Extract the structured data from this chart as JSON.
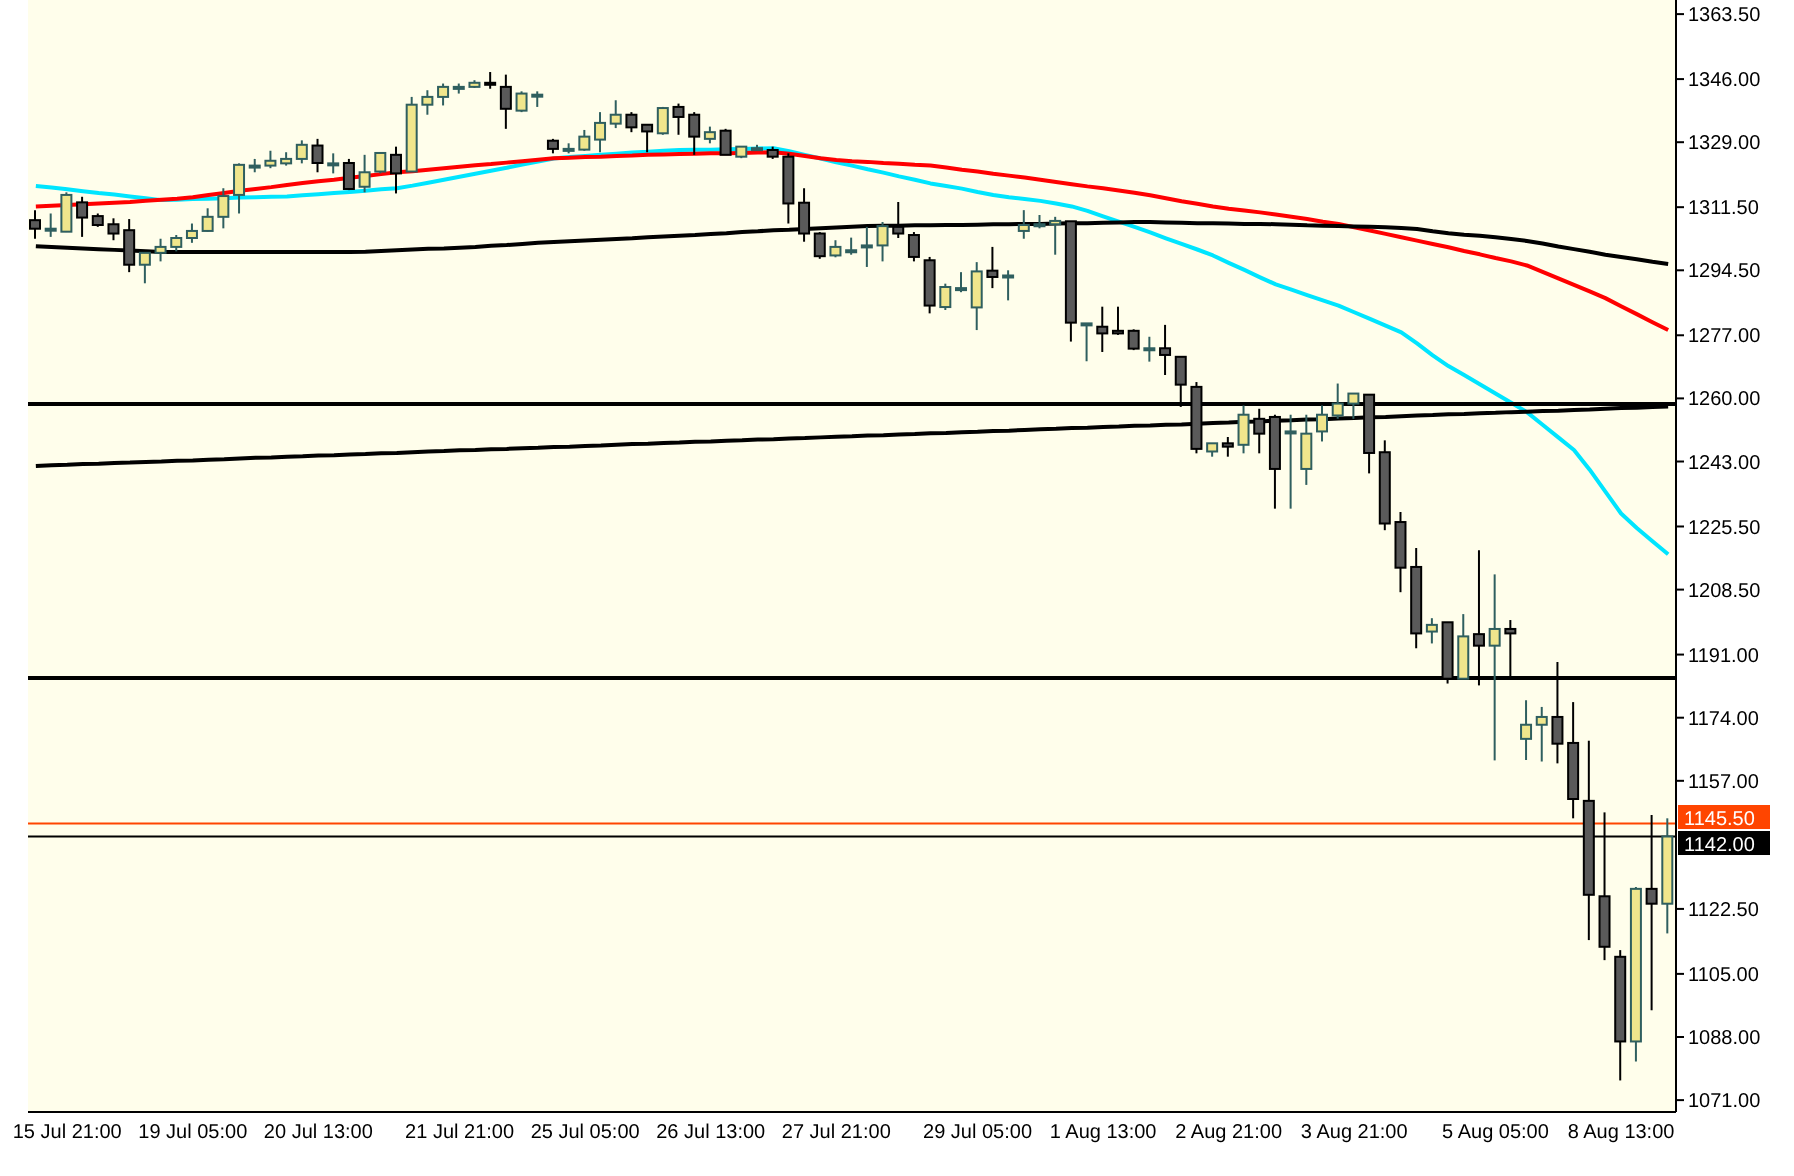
{
  "chart_data": {
    "type": "candlestick",
    "categories": [
      null,
      null,
      "15 Jul 21:00",
      null,
      null,
      null,
      null,
      null,
      null,
      null,
      "19 Jul 05:00",
      null,
      null,
      null,
      null,
      null,
      null,
      null,
      "20 Jul 13:00",
      null,
      null,
      null,
      null,
      null,
      null,
      null,
      null,
      "21 Jul 21:00",
      null,
      null,
      null,
      null,
      null,
      null,
      null,
      "25 Jul 05:00",
      null,
      null,
      null,
      null,
      null,
      null,
      null,
      "26 Jul 13:00",
      null,
      null,
      null,
      null,
      null,
      null,
      null,
      "27 Jul 21:00",
      null,
      null,
      null,
      null,
      null,
      null,
      null,
      null,
      "29 Jul 05:00",
      null,
      null,
      null,
      null,
      null,
      null,
      null,
      "1 Aug 13:00",
      null,
      null,
      null,
      null,
      null,
      null,
      null,
      "2 Aug 21:00",
      null,
      null,
      null,
      null,
      null,
      null,
      null,
      "3 Aug 21:00",
      null,
      null,
      null,
      null,
      null,
      null,
      null,
      null,
      "5 Aug 05:00",
      null,
      null,
      null,
      null,
      null,
      null,
      null,
      "8 Aug 13:00",
      null,
      null,
      null
    ],
    "ohlc": [
      [
        1308.0,
        1310.7,
        1303.0,
        1305.7
      ],
      [
        1305.7,
        1309.8,
        1303.5,
        1305.7
      ],
      [
        1304.9,
        1315.5,
        1304.8,
        1314.8
      ],
      [
        1312.8,
        1314.3,
        1303.5,
        1308.7
      ],
      [
        1309.1,
        1309.8,
        1306.2,
        1306.7
      ],
      [
        1306.9,
        1308.5,
        1302.6,
        1304.4
      ],
      [
        1305.3,
        1308.3,
        1294.0,
        1296.0
      ],
      [
        1296.0,
        1299.2,
        1291.0,
        1299.2
      ],
      [
        1299.2,
        1303.0,
        1296.9,
        1300.8
      ],
      [
        1300.8,
        1304.0,
        1299.6,
        1303.2
      ],
      [
        1303.2,
        1307.1,
        1301.9,
        1305.1
      ],
      [
        1305.1,
        1311.2,
        1304.9,
        1308.9
      ],
      [
        1308.9,
        1316.6,
        1305.8,
        1314.5
      ],
      [
        1314.8,
        1323.3,
        1309.8,
        1322.9
      ],
      [
        1322.7,
        1324.5,
        1320.9,
        1322.7
      ],
      [
        1322.7,
        1326.7,
        1322.0,
        1324.0
      ],
      [
        1323.3,
        1326.3,
        1322.7,
        1324.5
      ],
      [
        1324.5,
        1329.5,
        1323.3,
        1328.3
      ],
      [
        1328.1,
        1329.9,
        1320.9,
        1323.4
      ],
      [
        1323.3,
        1326.0,
        1320.6,
        1323.3
      ],
      [
        1323.4,
        1324.5,
        1316.1,
        1316.4
      ],
      [
        1317.0,
        1325.6,
        1315.5,
        1320.9
      ],
      [
        1321.1,
        1326.1,
        1320.6,
        1326.1
      ],
      [
        1325.6,
        1327.8,
        1315.2,
        1320.6
      ],
      [
        1321.1,
        1341.2,
        1321.1,
        1339.1
      ],
      [
        1339.1,
        1343.0,
        1336.4,
        1341.2
      ],
      [
        1341.2,
        1344.8,
        1338.9,
        1343.9
      ],
      [
        1343.9,
        1344.8,
        1342.1,
        1343.9
      ],
      [
        1343.9,
        1345.7,
        1343.6,
        1345.0
      ],
      [
        1345.0,
        1347.9,
        1343.4,
        1344.8
      ],
      [
        1343.9,
        1347.2,
        1332.6,
        1338.0
      ],
      [
        1337.5,
        1342.7,
        1337.1,
        1342.1
      ],
      [
        1341.8,
        1342.7,
        1338.5,
        1341.8
      ],
      [
        1329.4,
        1329.9,
        1326.0,
        1327.2
      ],
      [
        1327.2,
        1328.7,
        1326.0,
        1327.2
      ],
      [
        1327.0,
        1332.3,
        1326.7,
        1330.5
      ],
      [
        1329.7,
        1337.1,
        1326.3,
        1334.2
      ],
      [
        1334.0,
        1340.3,
        1332.8,
        1336.4
      ],
      [
        1336.4,
        1337.1,
        1331.7,
        1333.0
      ],
      [
        1333.7,
        1333.7,
        1326.3,
        1331.9
      ],
      [
        1331.4,
        1338.5,
        1331.0,
        1338.2
      ],
      [
        1338.5,
        1339.4,
        1331.0,
        1335.8
      ],
      [
        1336.4,
        1337.1,
        1325.6,
        1330.5
      ],
      [
        1329.9,
        1333.2,
        1328.7,
        1331.7
      ],
      [
        1332.1,
        1332.6,
        1325.6,
        1325.6
      ],
      [
        1325.1,
        1327.8,
        1324.7,
        1327.8
      ],
      [
        1327.4,
        1328.3,
        1326.9,
        1327.4
      ],
      [
        1326.9,
        1327.8,
        1324.5,
        1325.1
      ],
      [
        1325.1,
        1326.0,
        1307.1,
        1312.5
      ],
      [
        1312.7,
        1316.6,
        1302.2,
        1304.4
      ],
      [
        1304.4,
        1304.8,
        1297.6,
        1298.3
      ],
      [
        1298.5,
        1302.6,
        1298.0,
        1300.8
      ],
      [
        1299.9,
        1303.3,
        1298.7,
        1299.9
      ],
      [
        1301.2,
        1306.2,
        1295.4,
        1301.2
      ],
      [
        1301.2,
        1307.5,
        1296.9,
        1306.4
      ],
      [
        1306.2,
        1312.9,
        1303.2,
        1304.4
      ],
      [
        1304.0,
        1304.8,
        1296.9,
        1298.1
      ],
      [
        1297.2,
        1298.1,
        1282.9,
        1285.0
      ],
      [
        1284.6,
        1290.9,
        1283.8,
        1290.0
      ],
      [
        1289.7,
        1294.0,
        1288.6,
        1289.7
      ],
      [
        1284.5,
        1296.7,
        1278.4,
        1294.2
      ],
      [
        1294.4,
        1300.8,
        1289.7,
        1292.7
      ],
      [
        1293.1,
        1294.5,
        1286.4,
        1293.1
      ],
      [
        1305.1,
        1310.7,
        1303.0,
        1306.7
      ],
      [
        1306.9,
        1309.4,
        1305.8,
        1306.9
      ],
      [
        1306.9,
        1308.9,
        1298.7,
        1307.8
      ],
      [
        1307.7,
        1307.7,
        1275.3,
        1280.4
      ],
      [
        1280.2,
        1280.2,
        1270.0,
        1280.2
      ],
      [
        1279.3,
        1284.7,
        1272.5,
        1277.5
      ],
      [
        1278.2,
        1284.7,
        1277.1,
        1277.5
      ],
      [
        1278.2,
        1278.6,
        1273.0,
        1273.4
      ],
      [
        1273.5,
        1276.6,
        1269.9,
        1273.5
      ],
      [
        1273.5,
        1279.8,
        1266.3,
        1271.7
      ],
      [
        1271.2,
        1271.2,
        1257.7,
        1263.7
      ],
      [
        1263.1,
        1264.4,
        1245.2,
        1246.4
      ],
      [
        1245.7,
        1247.9,
        1244.3,
        1247.9
      ],
      [
        1247.9,
        1249.6,
        1244.3,
        1247.0
      ],
      [
        1247.5,
        1258.1,
        1245.2,
        1255.6
      ],
      [
        1254.5,
        1257.2,
        1245.2,
        1250.5
      ],
      [
        1255.0,
        1255.6,
        1230.3,
        1241.0
      ],
      [
        1251.1,
        1255.6,
        1230.3,
        1251.1
      ],
      [
        1241.0,
        1255.6,
        1236.7,
        1250.5
      ],
      [
        1251.1,
        1258.1,
        1248.4,
        1255.6
      ],
      [
        1255.4,
        1264.0,
        1254.5,
        1258.6
      ],
      [
        1258.6,
        1261.3,
        1254.5,
        1261.3
      ],
      [
        1261.0,
        1261.0,
        1239.8,
        1245.3
      ],
      [
        1245.5,
        1248.7,
        1224.5,
        1226.3
      ],
      [
        1226.7,
        1229.4,
        1207.8,
        1214.4
      ],
      [
        1214.6,
        1219.7,
        1192.7,
        1196.7
      ],
      [
        1197.2,
        1200.8,
        1194.0,
        1199.0
      ],
      [
        1199.7,
        1199.7,
        1183.2,
        1184.5
      ],
      [
        1184.5,
        1201.9,
        1184.5,
        1195.9
      ],
      [
        1196.5,
        1219.1,
        1182.7,
        1193.4
      ],
      [
        1193.4,
        1212.6,
        1162.5,
        1197.9
      ],
      [
        1197.9,
        1200.3,
        1184.5,
        1196.7
      ],
      [
        1168.3,
        1178.7,
        1162.6,
        1172.1
      ],
      [
        1172.1,
        1176.9,
        1162.2,
        1174.2
      ],
      [
        1174.2,
        1189.0,
        1161.7,
        1167.0
      ],
      [
        1167.2,
        1178.2,
        1146.9,
        1152.1
      ],
      [
        1151.6,
        1167.8,
        1114.1,
        1126.3
      ],
      [
        1125.9,
        1148.5,
        1108.7,
        1112.3
      ],
      [
        1109.6,
        1111.4,
        1076.3,
        1086.8
      ],
      [
        1086.8,
        1128.4,
        1081.4,
        1127.9
      ],
      [
        1127.9,
        1147.8,
        1095.2,
        1123.9
      ],
      [
        1123.9,
        1146.9,
        1115.9,
        1142.0
      ]
    ],
    "ylim": [
      1067.8,
      1367.3
    ],
    "yticks": [
      {
        "value": 1363.5,
        "label": "1363.50"
      },
      {
        "value": 1346,
        "label": "1346.00"
      },
      {
        "value": 1329,
        "label": "1329.00"
      },
      {
        "value": 1311.5,
        "label": "1311.50"
      },
      {
        "value": 1294.5,
        "label": "1294.50"
      },
      {
        "value": 1277,
        "label": "1277.00"
      },
      {
        "value": 1260,
        "label": "1260.00"
      },
      {
        "value": 1243,
        "label": "1243.00"
      },
      {
        "value": 1225.5,
        "label": "1225.50"
      },
      {
        "value": 1208.5,
        "label": "1208.50"
      },
      {
        "value": 1191,
        "label": "1191.00"
      },
      {
        "value": 1174,
        "label": "1174.00"
      },
      {
        "value": 1157,
        "label": "1157.00"
      },
      {
        "value": 1122.5,
        "label": "1122.50"
      },
      {
        "value": 1105,
        "label": "1105.00"
      },
      {
        "value": 1088,
        "label": "1088.00"
      },
      {
        "value": 1071,
        "label": "1071.00"
      }
    ],
    "series": [
      {
        "type": "line",
        "color": "#00e5ff",
        "values": [
          1317.2,
          1316.8,
          1316.3,
          1315.8,
          1315.3,
          1314.9,
          1314.4,
          1313.9,
          1313.4,
          1313.5,
          1313.7,
          1313.8,
          1313.9,
          1314.1,
          1314.2,
          1314.3,
          1314.4,
          1314.7,
          1315.0,
          1315.3,
          1315.6,
          1315.9,
          1316.3,
          1316.6,
          1317.3,
          1318.1,
          1318.9,
          1319.7,
          1320.5,
          1321.3,
          1322.1,
          1323.0,
          1323.8,
          1324.6,
          1325.0,
          1325.3,
          1325.6,
          1325.9,
          1326.2,
          1326.4,
          1326.7,
          1326.9,
          1327.0,
          1327.0,
          1327.1,
          1327.2,
          1327.3,
          1327.4,
          1326.6,
          1325.6,
          1324.6,
          1323.6,
          1322.7,
          1321.7,
          1320.8,
          1319.8,
          1318.9,
          1317.9,
          1317.2,
          1316.5,
          1315.6,
          1314.8,
          1314.2,
          1313.7,
          1313.2,
          1312.5,
          1311.7,
          1310.5,
          1309.0,
          1307.6,
          1306.2,
          1304.7,
          1303.1,
          1301.6,
          1300.1,
          1298.5,
          1296.5,
          1294.6,
          1292.6,
          1290.7,
          1289.3,
          1287.8,
          1286.4,
          1285.0,
          1283.2,
          1281.4,
          1279.6,
          1277.8,
          1274.8,
          1271.6,
          1268.7,
          1266.3,
          1263.8,
          1261.3,
          1258.8,
          1256.3,
          1252.9,
          1249.5,
          1246.1,
          1240.8,
          1234.9,
          1229.0,
          1225.1,
          1221.5,
          1218.0
        ]
      },
      {
        "type": "line",
        "color": "#ff0000",
        "values": [
          1311.7,
          1311.9,
          1312.1,
          1312.3,
          1312.5,
          1312.7,
          1312.9,
          1313.2,
          1313.5,
          1313.8,
          1314.2,
          1314.8,
          1315.3,
          1315.9,
          1316.4,
          1316.9,
          1317.5,
          1318.0,
          1318.5,
          1318.9,
          1319.4,
          1319.9,
          1320.4,
          1320.9,
          1321.2,
          1321.6,
          1322.0,
          1322.4,
          1322.8,
          1323.1,
          1323.5,
          1323.9,
          1324.3,
          1324.7,
          1324.8,
          1325.0,
          1325.1,
          1325.3,
          1325.4,
          1325.6,
          1325.7,
          1325.8,
          1325.9,
          1326.0,
          1326.0,
          1326.1,
          1326.2,
          1326.3,
          1325.9,
          1325.3,
          1324.7,
          1324.2,
          1323.9,
          1323.7,
          1323.4,
          1323.2,
          1322.9,
          1322.7,
          1322.2,
          1321.6,
          1321.1,
          1320.5,
          1320.0,
          1319.5,
          1318.9,
          1318.3,
          1317.7,
          1317.1,
          1316.6,
          1316.0,
          1315.4,
          1314.7,
          1313.9,
          1313.1,
          1312.4,
          1311.7,
          1311.1,
          1310.6,
          1310.1,
          1309.5,
          1308.9,
          1308.3,
          1307.6,
          1307.0,
          1306.1,
          1305.2,
          1304.3,
          1303.4,
          1302.5,
          1301.6,
          1300.7,
          1299.7,
          1298.8,
          1297.8,
          1296.9,
          1295.8,
          1294.1,
          1292.3,
          1290.6,
          1288.8,
          1287.0,
          1284.8,
          1282.7,
          1280.5,
          1278.4
        ]
      },
      {
        "type": "line",
        "color": "#000000",
        "values": [
          1301.0,
          1300.8,
          1300.6,
          1300.4,
          1300.2,
          1300.0,
          1299.8,
          1299.6,
          1299.4,
          1299.4,
          1299.4,
          1299.4,
          1299.4,
          1299.4,
          1299.4,
          1299.4,
          1299.4,
          1299.4,
          1299.4,
          1299.4,
          1299.4,
          1299.5,
          1299.7,
          1299.9,
          1300.1,
          1300.3,
          1300.4,
          1300.6,
          1300.8,
          1301.1,
          1301.3,
          1301.6,
          1301.9,
          1302.1,
          1302.3,
          1302.5,
          1302.7,
          1302.9,
          1303.1,
          1303.4,
          1303.6,
          1303.8,
          1304.0,
          1304.3,
          1304.5,
          1304.8,
          1305.0,
          1305.3,
          1305.4,
          1305.6,
          1305.8,
          1306.0,
          1306.2,
          1306.4,
          1306.5,
          1306.5,
          1306.6,
          1306.6,
          1306.7,
          1306.7,
          1306.8,
          1306.9,
          1306.9,
          1307.0,
          1307.0,
          1307.1,
          1307.2,
          1307.2,
          1307.3,
          1307.4,
          1307.5,
          1307.5,
          1307.4,
          1307.3,
          1307.2,
          1307.2,
          1307.1,
          1307.0,
          1307.0,
          1306.9,
          1306.8,
          1306.6,
          1306.5,
          1306.4,
          1306.3,
          1306.2,
          1306.1,
          1305.9,
          1305.6,
          1305.0,
          1304.5,
          1304.1,
          1303.8,
          1303.4,
          1302.9,
          1302.4,
          1301.7,
          1300.9,
          1300.2,
          1299.5,
          1298.7,
          1298.1,
          1297.5,
          1296.8,
          1296.2
        ]
      },
      {
        "type": "line",
        "color": "#000000",
        "values": [
          1241.8,
          1242.0,
          1242.1,
          1242.3,
          1242.4,
          1242.6,
          1242.7,
          1242.9,
          1243.0,
          1243.2,
          1243.3,
          1243.5,
          1243.6,
          1243.8,
          1244.0,
          1244.1,
          1244.3,
          1244.4,
          1244.6,
          1244.7,
          1244.9,
          1245.0,
          1245.2,
          1245.3,
          1245.5,
          1245.7,
          1245.8,
          1246.0,
          1246.1,
          1246.3,
          1246.4,
          1246.6,
          1246.7,
          1246.9,
          1247.0,
          1247.2,
          1247.3,
          1247.5,
          1247.7,
          1247.8,
          1248.0,
          1248.1,
          1248.3,
          1248.4,
          1248.6,
          1248.7,
          1248.9,
          1249.0,
          1249.2,
          1249.3,
          1249.5,
          1249.7,
          1249.8,
          1250.0,
          1250.1,
          1250.3,
          1250.4,
          1250.6,
          1250.7,
          1250.9,
          1251.0,
          1251.2,
          1251.3,
          1251.5,
          1251.7,
          1251.8,
          1252.0,
          1252.1,
          1252.3,
          1252.4,
          1252.6,
          1252.7,
          1252.9,
          1253.0,
          1253.2,
          1253.4,
          1253.5,
          1253.7,
          1253.8,
          1254.0,
          1254.1,
          1254.3,
          1254.4,
          1254.6,
          1254.7,
          1254.9,
          1255.0,
          1255.2,
          1255.4,
          1255.5,
          1255.7,
          1255.8,
          1256.0,
          1256.1,
          1256.3,
          1256.4,
          1256.6,
          1256.7,
          1256.9,
          1257.0,
          1257.2,
          1257.4,
          1257.5,
          1257.7,
          1257.8
        ]
      }
    ],
    "ref_lines": [
      {
        "axis": "y",
        "value": 1258.5,
        "color": "#000000"
      },
      {
        "axis": "y",
        "value": 1184.7,
        "color": "#000000"
      },
      {
        "axis": "y",
        "value": 1145.5,
        "label": "1145.50",
        "color": "#ff4500"
      },
      {
        "axis": "y",
        "value": 1142.0,
        "label": "1142.00",
        "color": "#000000"
      }
    ]
  }
}
